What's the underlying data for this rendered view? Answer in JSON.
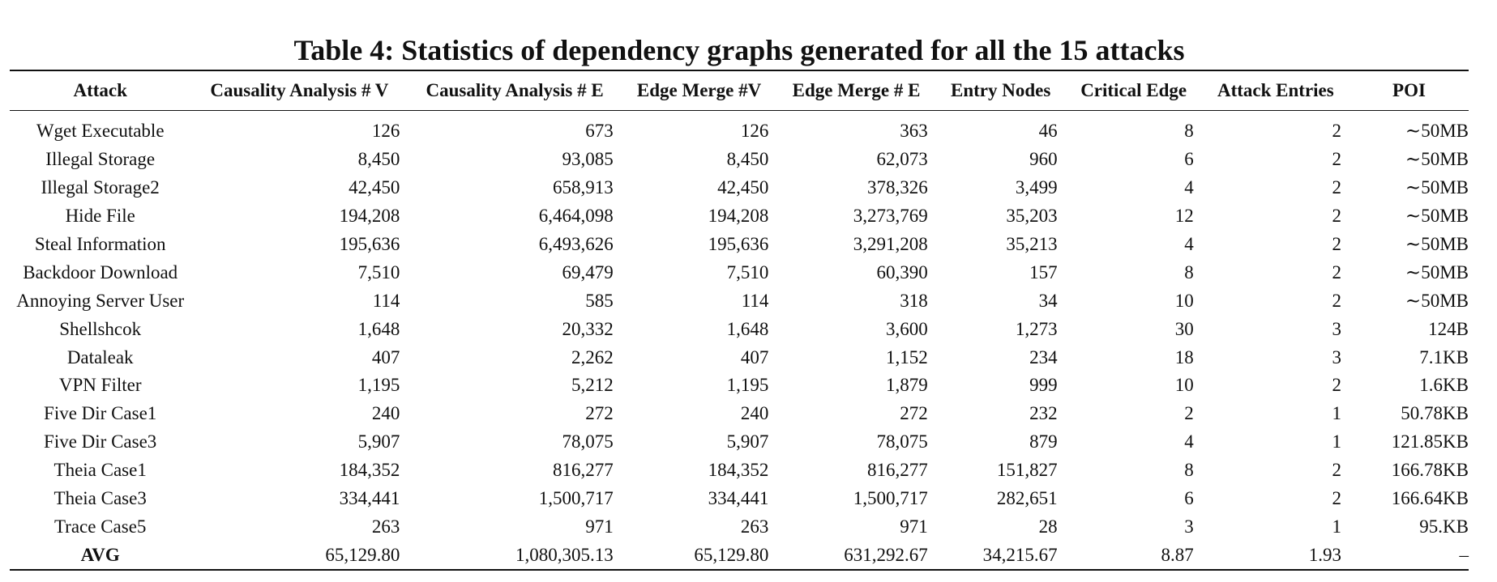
{
  "caption": "Table 4: Statistics of dependency graphs generated for all the 15 attacks",
  "columns": [
    "Attack",
    "Causality Analysis # V",
    "Causality Analysis # E",
    "Edge Merge #V",
    "Edge Merge # E",
    "Entry Nodes",
    "Critical Edge",
    "Attack Entries",
    "POI"
  ],
  "rows": [
    [
      "Wget Executable",
      "126",
      "673",
      "126",
      "363",
      "46",
      "8",
      "2",
      "∼50MB"
    ],
    [
      "Illegal Storage",
      "8,450",
      "93,085",
      "8,450",
      "62,073",
      "960",
      "6",
      "2",
      "∼50MB"
    ],
    [
      "Illegal Storage2",
      "42,450",
      "658,913",
      "42,450",
      "378,326",
      "3,499",
      "4",
      "2",
      "∼50MB"
    ],
    [
      "Hide File",
      "194,208",
      "6,464,098",
      "194,208",
      "3,273,769",
      "35,203",
      "12",
      "2",
      "∼50MB"
    ],
    [
      "Steal Information",
      "195,636",
      "6,493,626",
      "195,636",
      "3,291,208",
      "35,213",
      "4",
      "2",
      "∼50MB"
    ],
    [
      "Backdoor Download",
      "7,510",
      "69,479",
      "7,510",
      "60,390",
      "157",
      "8",
      "2",
      "∼50MB"
    ],
    [
      "Annoying Server User",
      "114",
      "585",
      "114",
      "318",
      "34",
      "10",
      "2",
      "∼50MB"
    ],
    [
      "Shellshcok",
      "1,648",
      "20,332",
      "1,648",
      "3,600",
      "1,273",
      "30",
      "3",
      "124B"
    ],
    [
      "Dataleak",
      "407",
      "2,262",
      "407",
      "1,152",
      "234",
      "18",
      "3",
      "7.1KB"
    ],
    [
      "VPN Filter",
      "1,195",
      "5,212",
      "1,195",
      "1,879",
      "999",
      "10",
      "2",
      "1.6KB"
    ],
    [
      "Five Dir Case1",
      "240",
      "272",
      "240",
      "272",
      "232",
      "2",
      "1",
      "50.78KB"
    ],
    [
      "Five Dir Case3",
      "5,907",
      "78,075",
      "5,907",
      "78,075",
      "879",
      "4",
      "1",
      "121.85KB"
    ],
    [
      "Theia Case1",
      "184,352",
      "816,277",
      "184,352",
      "816,277",
      "151,827",
      "8",
      "2",
      "166.78KB"
    ],
    [
      "Theia Case3",
      "334,441",
      "1,500,717",
      "334,441",
      "1,500,717",
      "282,651",
      "6",
      "2",
      "166.64KB"
    ],
    [
      "Trace Case5",
      "263",
      "971",
      "263",
      "971",
      "28",
      "3",
      "1",
      "95.KB"
    ],
    [
      "AVG",
      "65,129.80",
      "1,080,305.13",
      "65,129.80",
      "631,292.67",
      "34,215.67",
      "8.87",
      "1.93",
      "–"
    ]
  ]
}
